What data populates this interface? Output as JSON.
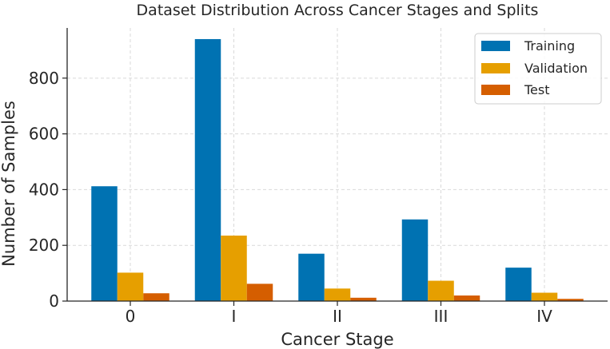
{
  "chart_data": {
    "type": "bar",
    "title": "Dataset Distribution Across Cancer Stages and Splits",
    "xlabel": "Cancer Stage",
    "ylabel": "Number of Samples",
    "categories": [
      "0",
      "I",
      "II",
      "III",
      "IV"
    ],
    "series": [
      {
        "name": "Training",
        "color": "#0072B2",
        "values": [
          412,
          940,
          170,
          293,
          120
        ]
      },
      {
        "name": "Validation",
        "color": "#E69F00",
        "values": [
          102,
          235,
          45,
          73,
          30
        ]
      },
      {
        "name": "Test",
        "color": "#D55E00",
        "values": [
          28,
          62,
          12,
          20,
          8
        ]
      }
    ],
    "ylim": [
      0,
      980
    ],
    "yticks": [
      0,
      200,
      400,
      600,
      800
    ],
    "grid": true,
    "legend_position": "top-right"
  }
}
